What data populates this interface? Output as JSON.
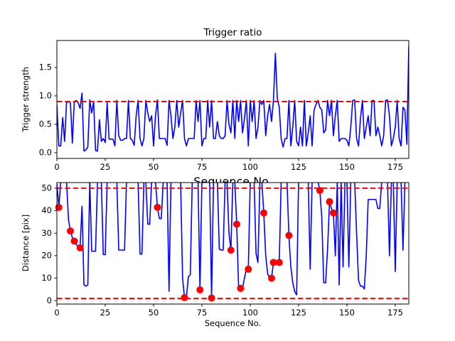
{
  "figure": {
    "title": "Trigger ratio",
    "ylabel_top": "Trigger strength",
    "ylabel_bottom": "Distance [pix]",
    "xlabel_top": "Sequence No.",
    "xlabel_bottom": "Sequence No.",
    "background": "#ffffff",
    "line_color": "#0000ff",
    "threshold_color": "#ff0000",
    "dot_color": "#ff0000"
  },
  "chart_data": [
    {
      "type": "line",
      "name": "trigger-ratio",
      "title": "Trigger ratio",
      "xlabel": "Sequence No.",
      "ylabel": "Trigger strength",
      "xlim": [
        0,
        182
      ],
      "ylim": [
        -0.1,
        1.975
      ],
      "xticks": [
        0,
        25,
        50,
        75,
        100,
        125,
        150,
        175
      ],
      "yticks": [
        "0.0",
        "0.5",
        "1.0",
        "1.5"
      ],
      "grid": false,
      "thresholds": [
        {
          "value": 0.9,
          "color": "#ff0000",
          "style": "dashed"
        }
      ],
      "series": [
        {
          "name": "trigger-strength-line",
          "color": "#0000ff",
          "x_start": 0,
          "x_step": 1,
          "values": [
            0.85,
            0.12,
            0.12,
            0.62,
            0.2,
            0.88,
            0.9,
            0.88,
            0.17,
            0.9,
            0.92,
            0.88,
            0.78,
            1.05,
            0.03,
            0.05,
            0.1,
            0.93,
            0.7,
            0.9,
            0.04,
            0.03,
            0.58,
            0.2,
            0.25,
            0.18,
            0.88,
            0.24,
            0.24,
            0.24,
            0.12,
            0.92,
            0.3,
            0.22,
            0.22,
            0.25,
            0.25,
            0.92,
            0.25,
            0.22,
            0.13,
            0.65,
            0.92,
            0.25,
            0.12,
            0.25,
            0.92,
            0.7,
            0.55,
            0.65,
            0.12,
            0.65,
            0.93,
            0.25,
            0.25,
            0.25,
            0.25,
            0.13,
            0.92,
            0.65,
            0.25,
            0.45,
            0.92,
            0.45,
            0.7,
            0.92,
            0.25,
            0.12,
            0.25,
            0.25,
            0.25,
            0.25,
            0.92,
            0.55,
            0.92,
            0.12,
            0.25,
            0.25,
            0.92,
            0.45,
            0.92,
            0.25,
            0.25,
            0.55,
            0.3,
            0.25,
            0.25,
            0.3,
            0.92,
            0.5,
            0.35,
            0.92,
            0.25,
            0.92,
            0.55,
            0.92,
            0.35,
            0.6,
            0.92,
            0.12,
            0.92,
            0.55,
            0.92,
            0.25,
            0.45,
            0.92,
            0.85,
            0.92,
            0.3,
            0.65,
            0.85,
            0.55,
            0.92,
            1.75,
            0.95,
            0.8,
            0.25,
            0.1,
            0.25,
            0.25,
            0.92,
            0.12,
            0.45,
            0.92,
            0.2,
            0.12,
            0.45,
            0.12,
            0.92,
            0.12,
            0.35,
            0.65,
            0.12,
            0.75,
            0.85,
            0.92,
            0.8,
            0.75,
            0.35,
            0.4,
            0.92,
            0.65,
            0.92,
            0.3,
            0.65,
            0.92,
            0.2,
            0.25,
            0.25,
            0.25,
            0.22,
            0.12,
            0.45,
            0.92,
            0.93,
            0.25,
            0.12,
            0.6,
            0.92,
            0.25,
            0.45,
            0.65,
            0.3,
            0.92,
            0.92,
            0.3,
            0.45,
            0.3,
            0.12,
            0.3,
            0.92,
            0.93,
            0.65,
            0.12,
            0.25,
            0.45,
            0.92,
            0.25,
            0.12,
            0.8,
            0.75,
            0.15,
            1.88
          ]
        }
      ]
    },
    {
      "type": "line",
      "name": "distance",
      "title": "",
      "xlabel": "Sequence No.",
      "ylabel": "Distance [pix]",
      "xlim": [
        0,
        182
      ],
      "ylim": [
        -1.5,
        52.5
      ],
      "xticks": [
        0,
        25,
        50,
        75,
        100,
        125,
        150,
        175
      ],
      "yticks": [
        "0",
        "10",
        "20",
        "30",
        "40",
        "50"
      ],
      "grid": false,
      "thresholds": [
        {
          "value": 50,
          "color": "#ff0000",
          "style": "dashed"
        },
        {
          "value": 1,
          "color": "#ff0000",
          "style": "dashed"
        }
      ],
      "series": [
        {
          "name": "distance-line",
          "color": "#0000ff",
          "x_start": 0,
          "x_step": 1,
          "values": [
            52,
            41.5,
            53,
            53,
            53,
            53,
            36,
            31,
            28,
            26.5,
            25,
            24,
            23.5,
            42,
            7,
            6.5,
            7,
            53,
            22,
            22,
            22,
            53,
            53,
            53,
            20.5,
            20.5,
            53,
            53,
            53,
            53,
            53,
            53,
            22.5,
            22.5,
            22.5,
            22.5,
            53,
            53,
            53,
            53,
            53,
            53,
            53,
            20.7,
            20.7,
            53,
            53,
            34,
            34,
            53,
            53,
            53,
            41.5,
            36.5,
            36.5,
            53,
            53,
            53,
            4.2,
            53,
            53,
            53,
            53,
            53,
            53,
            10,
            1.4,
            1.4,
            10.7,
            11.5,
            53,
            53,
            53,
            53,
            4.8,
            53,
            53,
            53,
            53,
            53,
            1.2,
            53,
            53,
            53,
            23,
            22.5,
            22.5,
            53,
            53,
            30,
            22.5,
            53,
            53,
            34,
            5.5,
            5.5,
            5.5,
            10,
            14,
            14,
            53,
            53,
            53,
            21,
            17,
            53,
            53,
            39,
            20,
            12,
            10,
            10,
            17,
            16.5,
            16.5,
            17,
            53,
            53,
            53,
            53,
            29,
            15,
            8,
            4,
            2.6,
            53,
            53,
            53,
            53,
            53,
            53,
            14,
            53,
            53,
            53,
            53,
            49,
            37,
            8,
            8,
            23,
            44,
            41,
            39,
            20,
            53,
            7,
            53,
            15,
            53,
            53,
            15,
            53,
            53,
            53,
            30,
            9,
            6.5,
            6.5,
            5.2,
            20,
            45,
            45,
            45,
            45,
            45,
            41,
            41,
            53,
            53,
            53,
            53,
            20,
            53,
            53,
            13,
            53,
            53,
            53,
            22.5,
            53,
            53,
            53
          ]
        }
      ],
      "dots": {
        "name": "trigger-event-dots",
        "color": "#ff0000",
        "points": [
          [
            1,
            41.5
          ],
          [
            7,
            31
          ],
          [
            9,
            26.5
          ],
          [
            12,
            23.5
          ],
          [
            52,
            41.5
          ],
          [
            66,
            1.4
          ],
          [
            74,
            4.8
          ],
          [
            80,
            1.2
          ],
          [
            90,
            22.5
          ],
          [
            93,
            34
          ],
          [
            95,
            5.5
          ],
          [
            99,
            14
          ],
          [
            107,
            39
          ],
          [
            111,
            10
          ],
          [
            112,
            17
          ],
          [
            115,
            17
          ],
          [
            120,
            29
          ],
          [
            136,
            49
          ],
          [
            141,
            44
          ],
          [
            143,
            39
          ]
        ]
      }
    }
  ]
}
